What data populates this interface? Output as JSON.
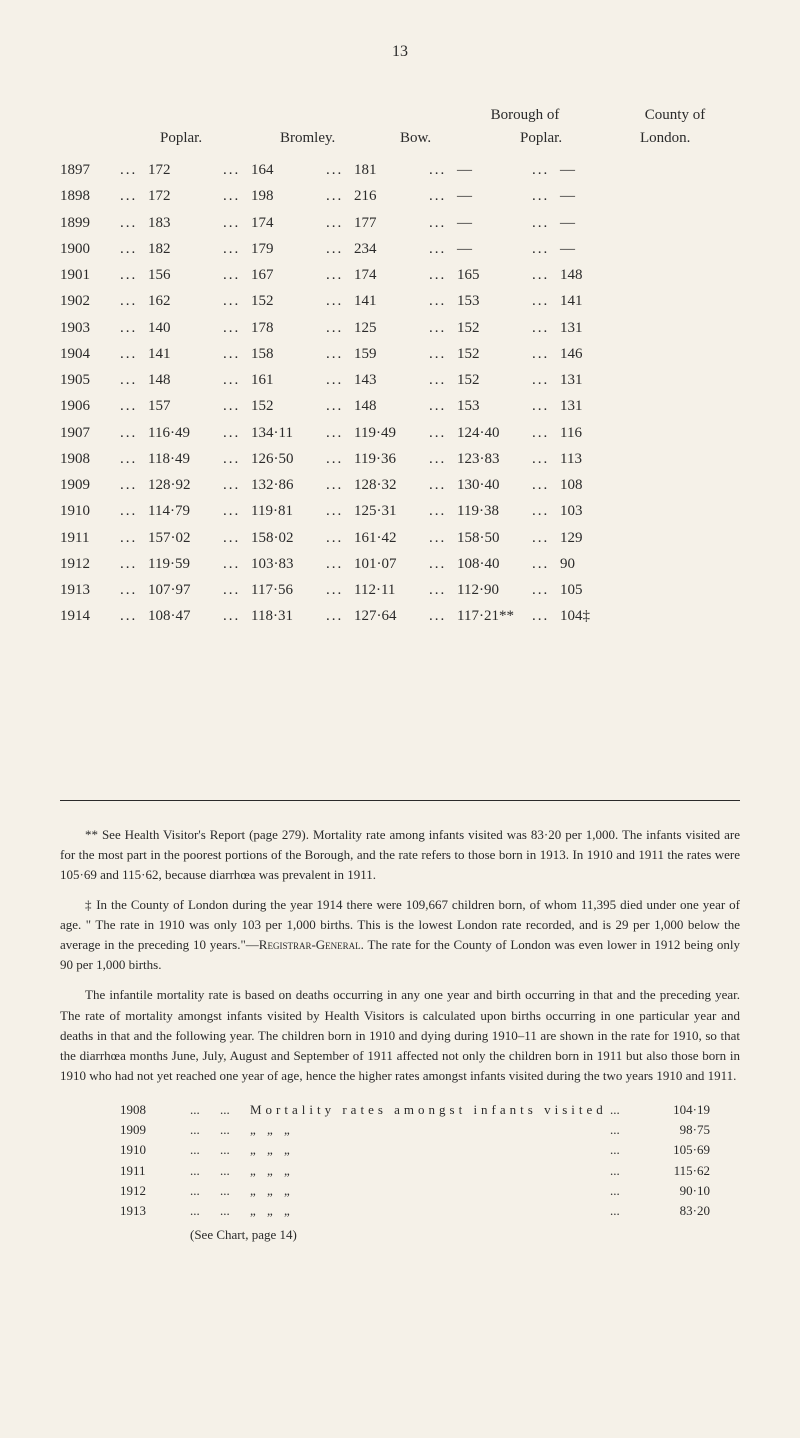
{
  "page_number": "13",
  "headers": {
    "poplar": "Poplar.",
    "bromley": "Bromley.",
    "bow": "Bow.",
    "borough_of": "Borough of",
    "county_of": "County of",
    "borough_poplar": "Poplar.",
    "london": "London."
  },
  "rows": [
    {
      "year": "1897",
      "poplar": "172",
      "bromley": "164",
      "bow": "181",
      "borough": "—",
      "county": "—"
    },
    {
      "year": "1898",
      "poplar": "172",
      "bromley": "198",
      "bow": "216",
      "borough": "—",
      "county": "—"
    },
    {
      "year": "1899",
      "poplar": "183",
      "bromley": "174",
      "bow": "177",
      "borough": "—",
      "county": "—"
    },
    {
      "year": "1900",
      "poplar": "182",
      "bromley": "179",
      "bow": "234",
      "borough": "—",
      "county": "—"
    },
    {
      "year": "1901",
      "poplar": "156",
      "bromley": "167",
      "bow": "174",
      "borough": "165",
      "county": "148"
    },
    {
      "year": "1902",
      "poplar": "162",
      "bromley": "152",
      "bow": "141",
      "borough": "153",
      "county": "141"
    },
    {
      "year": "1903",
      "poplar": "140",
      "bromley": "178",
      "bow": "125",
      "borough": "152",
      "county": "131"
    },
    {
      "year": "1904",
      "poplar": "141",
      "bromley": "158",
      "bow": "159",
      "borough": "152",
      "county": "146"
    },
    {
      "year": "1905",
      "poplar": "148",
      "bromley": "161",
      "bow": "143",
      "borough": "152",
      "county": "131"
    },
    {
      "year": "1906",
      "poplar": "157",
      "bromley": "152",
      "bow": "148",
      "borough": "153",
      "county": "131"
    },
    {
      "year": "1907",
      "poplar": "116·49",
      "bromley": "134·11",
      "bow": "119·49",
      "borough": "124·40",
      "county": "116"
    },
    {
      "year": "1908",
      "poplar": "118·49",
      "bromley": "126·50",
      "bow": "119·36",
      "borough": "123·83",
      "county": "113"
    },
    {
      "year": "1909",
      "poplar": "128·92",
      "bromley": "132·86",
      "bow": "128·32",
      "borough": "130·40",
      "county": "108"
    },
    {
      "year": "1910",
      "poplar": "114·79",
      "bromley": "119·81",
      "bow": "125·31",
      "borough": "119·38",
      "county": "103"
    },
    {
      "year": "1911",
      "poplar": "157·02",
      "bromley": "158·02",
      "bow": "161·42",
      "borough": "158·50",
      "county": "129"
    },
    {
      "year": "1912",
      "poplar": "119·59",
      "bromley": "103·83",
      "bow": "101·07",
      "borough": "108·40",
      "county": "90"
    },
    {
      "year": "1913",
      "poplar": "107·97",
      "bromley": "117·56",
      "bow": "112·11",
      "borough": "112·90",
      "county": "105"
    },
    {
      "year": "1914",
      "poplar": "108·47",
      "bromley": "118·31",
      "bow": "127·64",
      "borough": "117·21**",
      "county": "104‡"
    }
  ],
  "footnote1": "** See Health Visitor's Report (page 279). Mortality rate among infants visited was 83·20 per 1,000. The infants visited are for the most part in the poorest portions of the Borough, and the rate refers to those born in 1913. In 1910 and 1911 the rates were 105·69 and 115·62, because diarrhœa was prevalent in 1911.",
  "footnote2_a": "‡ In the County of London during the year 1914 there were 109,667 children born, of whom 11,395 died under one year of age. \" The rate in 1910 was only 103 per 1,000 births. This is the lowest London rate recorded, and is 29 per 1,000 below the average in the preceding 10 years.\"—",
  "footnote2_registrar": "Registrar-General.",
  "footnote2_b": " The rate for the County of London was even lower in 1912 being only 90 per 1,000 births.",
  "footnote3": "The infantile mortality rate is based on deaths occurring in any one year and birth occurring in that and the preceding year. The rate of mortality amongst infants visited by Health Visitors is calculated upon births occurring in one particular year and deaths in that and the following year. The children born in 1910 and dying during 1910–11 are shown in the rate for 1910, so that the diarrhœa months June, July, August and September of 1911 affected not only the children born in 1911 but also those born in 1910 who had not yet reached one year of age, hence the higher rates amongst infants visited during the two years 1910 and 1911.",
  "rates": [
    {
      "year": "1908",
      "label": "Mortality rates amongst infants visited",
      "value": "104·19"
    },
    {
      "year": "1909",
      "label": "„               „               „",
      "value": "98·75"
    },
    {
      "year": "1910",
      "label": "„               „               „",
      "value": "105·69"
    },
    {
      "year": "1911",
      "label": "„               „               „",
      "value": "115·62"
    },
    {
      "year": "1912",
      "label": "„               „               „",
      "value": "90·10"
    },
    {
      "year": "1913",
      "label": "„               „               „",
      "value": "83·20"
    }
  ],
  "see_chart": "(See Chart, page 14)",
  "dots": "..."
}
